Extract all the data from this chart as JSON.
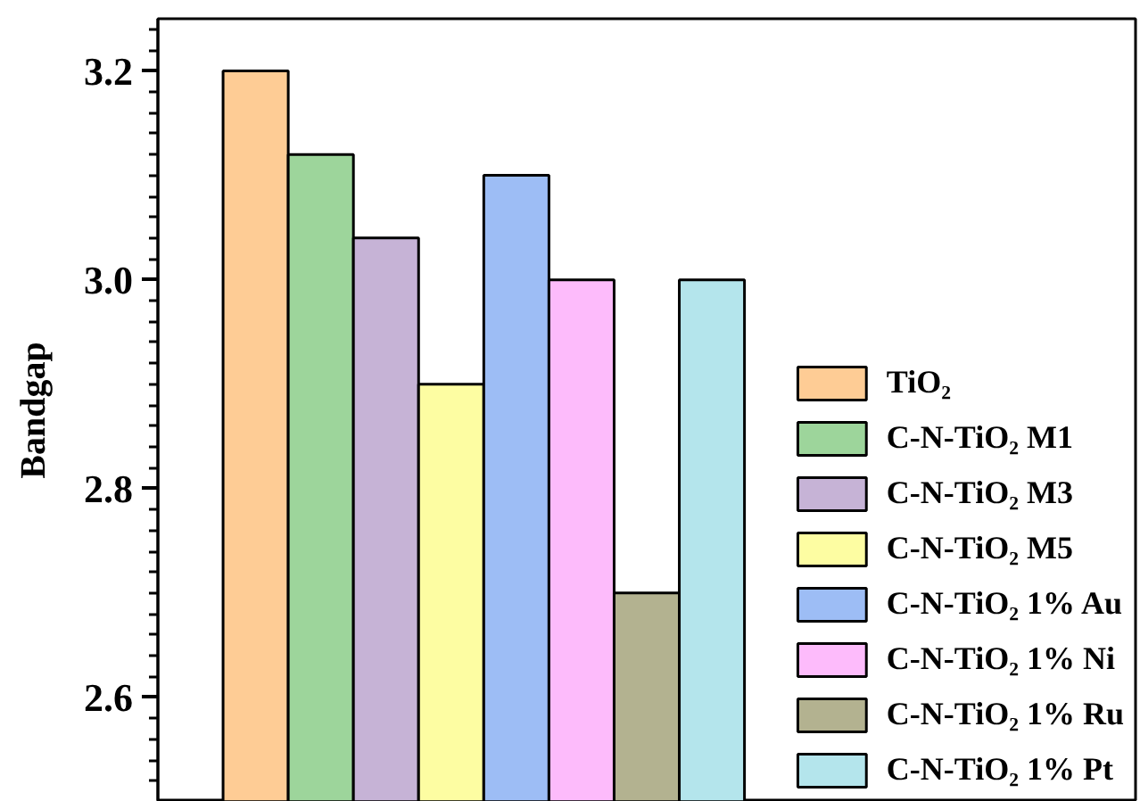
{
  "chart_data": {
    "type": "bar",
    "ylabel": "Bandgap",
    "categories": [
      null
    ],
    "series": [
      {
        "name": "TiO₂",
        "color": "#fecc95",
        "values": [
          3.2
        ]
      },
      {
        "name": "C-N-TiO₂ M1",
        "color": "#9dd59b",
        "values": [
          3.12
        ]
      },
      {
        "name": "C-N-TiO₂ M3",
        "color": "#c6b3d6",
        "values": [
          3.04
        ]
      },
      {
        "name": "C-N-TiO₂ M5",
        "color": "#fdfda2",
        "values": [
          2.9
        ]
      },
      {
        "name": "C-N-TiO₂ 1% Au",
        "color": "#9dbdf5",
        "values": [
          3.1
        ]
      },
      {
        "name": "C-N-TiO₂ 1% Ni",
        "color": "#fdbbfb",
        "values": [
          3.0
        ]
      },
      {
        "name": "C-N-TiO₂ 1% Ru",
        "color": "#b3b290",
        "values": [
          2.7
        ]
      },
      {
        "name": "C-N-TiO₂ 1% Pt",
        "color": "#b4e5ec",
        "values": [
          3.0
        ]
      }
    ],
    "ylim": [
      2.5,
      3.25
    ],
    "yticks": [
      {
        "value": 2.52,
        "label": null
      },
      {
        "value": 2.54,
        "label": null
      },
      {
        "value": 2.56,
        "label": null
      },
      {
        "value": 2.58,
        "label": null
      },
      {
        "value": 2.6,
        "label": "2.6"
      },
      {
        "value": 2.62,
        "label": null
      },
      {
        "value": 2.64,
        "label": null
      },
      {
        "value": 2.66,
        "label": null
      },
      {
        "value": 2.68,
        "label": null
      },
      {
        "value": 2.7,
        "label": null
      },
      {
        "value": 2.72,
        "label": null
      },
      {
        "value": 2.74,
        "label": null
      },
      {
        "value": 2.76,
        "label": null
      },
      {
        "value": 2.78,
        "label": null
      },
      {
        "value": 2.8,
        "label": "2.8"
      },
      {
        "value": 2.82,
        "label": null
      },
      {
        "value": 2.84,
        "label": null
      },
      {
        "value": 2.86,
        "label": null
      },
      {
        "value": 2.88,
        "label": null
      },
      {
        "value": 2.9,
        "label": null
      },
      {
        "value": 2.92,
        "label": null
      },
      {
        "value": 2.94,
        "label": null
      },
      {
        "value": 2.96,
        "label": null
      },
      {
        "value": 2.98,
        "label": null
      },
      {
        "value": 3.0,
        "label": "3.0"
      },
      {
        "value": 3.02,
        "label": null
      },
      {
        "value": 3.04,
        "label": null
      },
      {
        "value": 3.06,
        "label": null
      },
      {
        "value": 3.08,
        "label": null
      },
      {
        "value": 3.1,
        "label": null
      },
      {
        "value": 3.12,
        "label": null
      },
      {
        "value": 3.14,
        "label": null
      },
      {
        "value": 3.16,
        "label": null
      },
      {
        "value": 3.18,
        "label": null
      },
      {
        "value": 3.2,
        "label": "3.2"
      },
      {
        "value": 3.22,
        "label": null
      },
      {
        "value": 3.24,
        "label": null
      }
    ],
    "legend": "bottom right",
    "tick_labels": "y"
  }
}
